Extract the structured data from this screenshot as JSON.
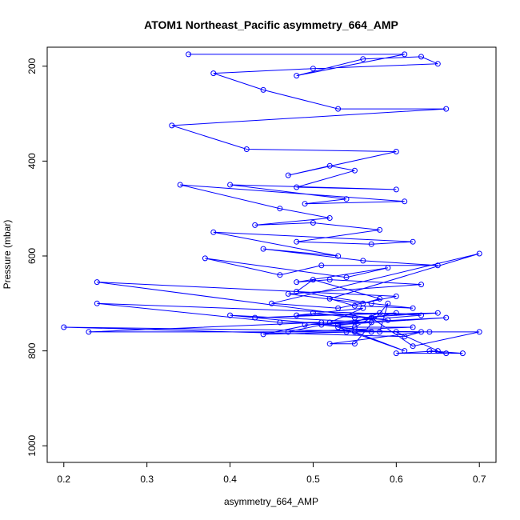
{
  "chart_data": {
    "type": "line",
    "title": "ATOM1 Northeast_Pacific asymmetry_664_AMP",
    "xlabel": "asymmetry_664_AMP",
    "ylabel": "Pressure (mbar)",
    "xlim": [
      0.18,
      0.72
    ],
    "ylim": [
      1035,
      160
    ],
    "y_reversed": true,
    "grid": false,
    "x_ticks": [
      0.2,
      0.3,
      0.4,
      0.5,
      0.6,
      0.7
    ],
    "x_tick_labels": [
      "0.2",
      "0.3",
      "0.4",
      "0.5",
      "0.6",
      "0.7"
    ],
    "y_ticks": [
      200,
      400,
      600,
      800,
      1000
    ],
    "y_tick_labels": [
      "200",
      "400",
      "600",
      "800",
      "1000"
    ],
    "series": [
      {
        "marker": "open-circle",
        "color": "#0000ff",
        "x": [
          0.35,
          0.61,
          0.48,
          0.56,
          0.63,
          0.65,
          0.5,
          0.38,
          0.44,
          0.53,
          0.66,
          0.33,
          0.42,
          0.6,
          0.47,
          0.52,
          0.55,
          0.48,
          0.6,
          0.4,
          0.54,
          0.49,
          0.61,
          0.34,
          0.46,
          0.52,
          0.43,
          0.5,
          0.58,
          0.48,
          0.57,
          0.62,
          0.38,
          0.53,
          0.44,
          0.56,
          0.65,
          0.51,
          0.46,
          0.37,
          0.54,
          0.59,
          0.48,
          0.52,
          0.63,
          0.47,
          0.56,
          0.58,
          0.5,
          0.48,
          0.57,
          0.62,
          0.55,
          0.52,
          0.7,
          0.45,
          0.53,
          0.6,
          0.24,
          0.59,
          0.5,
          0.55,
          0.65,
          0.48,
          0.56,
          0.52,
          0.63,
          0.24,
          0.46,
          0.55,
          0.58,
          0.43,
          0.6,
          0.53,
          0.66,
          0.49,
          0.57,
          0.4,
          0.55,
          0.62,
          0.47,
          0.51,
          0.58,
          0.59,
          0.55,
          0.52,
          0.63,
          0.61,
          0.2,
          0.64,
          0.54,
          0.57,
          0.62,
          0.7,
          0.23,
          0.51,
          0.44,
          0.55,
          0.61,
          0.53,
          0.57,
          0.6,
          0.65,
          0.6,
          0.68,
          0.64,
          0.66
        ],
        "y": [
          175,
          175,
          220,
          185,
          180,
          195,
          205,
          215,
          250,
          290,
          290,
          325,
          375,
          380,
          430,
          410,
          420,
          455,
          460,
          450,
          480,
          490,
          485,
          450,
          500,
          520,
          535,
          530,
          545,
          570,
          575,
          570,
          550,
          600,
          585,
          610,
          620,
          620,
          640,
          605,
          645,
          625,
          655,
          650,
          660,
          680,
          700,
          690,
          650,
          675,
          700,
          710,
          705,
          690,
          595,
          700,
          710,
          685,
          655,
          735,
          720,
          730,
          720,
          725,
          710,
          740,
          725,
          700,
          740,
          740,
          720,
          730,
          720,
          745,
          730,
          745,
          740,
          725,
          750,
          750,
          760,
          745,
          760,
          700,
          785,
          785,
          760,
          770,
          750,
          760,
          760,
          730,
          790,
          760,
          760,
          740,
          765,
          760,
          800,
          750,
          760,
          760,
          800,
          805,
          805,
          800,
          805
        ]
      }
    ]
  }
}
